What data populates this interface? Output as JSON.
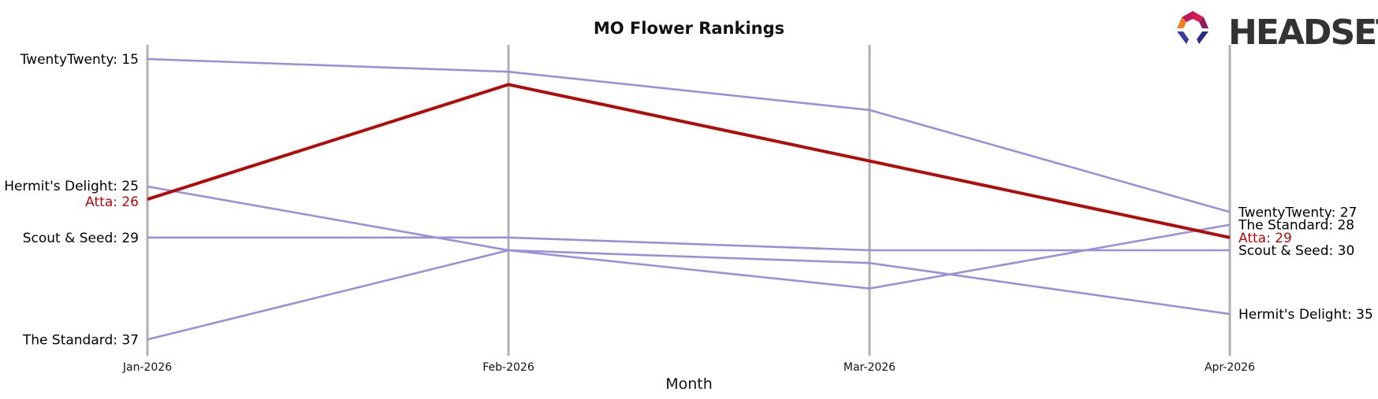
{
  "chart_data": {
    "type": "line",
    "title": "MO Flower Rankings",
    "xlabel": "Month",
    "ylabel": "",
    "x": [
      "Jan-2026",
      "Feb-2026",
      "Mar-2026",
      "Apr-2026"
    ],
    "ylim": [
      38,
      14
    ],
    "y_inverted": true,
    "grid": "vertical",
    "highlight_color": "#b30a0a",
    "default_color": "#9a8fdb",
    "series": [
      {
        "name": "TwentyTwenty",
        "values": [
          15,
          16,
          19,
          27
        ],
        "highlight": false,
        "start_label": "TwentyTwenty: 15",
        "end_label": "TwentyTwenty: 27"
      },
      {
        "name": "Hermit's Delight",
        "values": [
          25,
          30,
          31,
          35
        ],
        "highlight": false,
        "start_label": "Hermit's Delight: 25",
        "end_label": "Hermit's Delight: 35"
      },
      {
        "name": "Scout & Seed",
        "values": [
          29,
          29,
          30,
          30
        ],
        "highlight": false,
        "start_label": "Scout & Seed: 29",
        "end_label": "Scout & Seed: 30"
      },
      {
        "name": "The Standard",
        "values": [
          37,
          30,
          33,
          28
        ],
        "highlight": false,
        "start_label": "The Standard: 37",
        "end_label": "The Standard: 28"
      },
      {
        "name": "Atta",
        "values": [
          26,
          17,
          23,
          29
        ],
        "highlight": true,
        "start_label": "Atta: 26",
        "end_label": "Atta: 29"
      }
    ]
  },
  "brand": {
    "logo_text": "HEADSET"
  }
}
